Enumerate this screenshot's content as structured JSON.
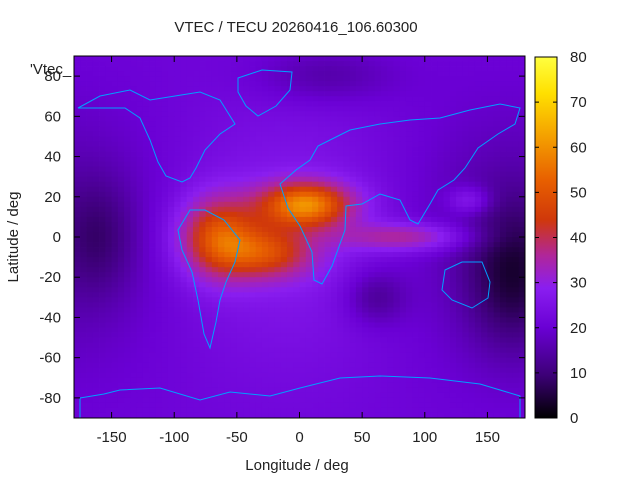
{
  "chart_data": {
    "type": "heatmap",
    "title": "VTEC / TECU 20260416_106.60300",
    "xlabel": "Longitude / deg",
    "ylabel": "Latitude / deg",
    "xlim": [
      -180,
      180
    ],
    "ylim": [
      -90,
      90
    ],
    "xticks": [
      -150,
      -100,
      -50,
      0,
      50,
      100,
      150
    ],
    "yticks": [
      80,
      60,
      40,
      20,
      0,
      -20,
      -40,
      -60,
      -80
    ],
    "colorbar": {
      "min": 0,
      "max": 80,
      "ticks": [
        0,
        10,
        20,
        30,
        40,
        50,
        60,
        70,
        80
      ]
    },
    "overlay_label": "'Vtec_",
    "grid": false,
    "field_features": [
      {
        "name": "equatorial-crest-africa",
        "lon": 10,
        "lat": 15,
        "value": 62
      },
      {
        "name": "equatorial-crest-america",
        "lon": -70,
        "lat": -5,
        "value": 48
      },
      {
        "name": "southern-crest",
        "lon": -20,
        "lat": -8,
        "value": 50
      },
      {
        "name": "indian-ocean-tail",
        "lon": 90,
        "lat": 0,
        "value": 40
      },
      {
        "name": "night-trough-pacific",
        "lon": 170,
        "lat": -20,
        "value": 8
      },
      {
        "name": "south-atlantic-low",
        "lon": 60,
        "lat": -30,
        "value": 10
      }
    ],
    "colors": {
      "colormap": [
        "#000000",
        "#3d0078",
        "#6a00d4",
        "#8a1ef0",
        "#b0269a",
        "#d0380a",
        "#e86000",
        "#f4a000",
        "#ffe000",
        "#ffff40"
      ],
      "coastline": "#00a0ff"
    }
  }
}
